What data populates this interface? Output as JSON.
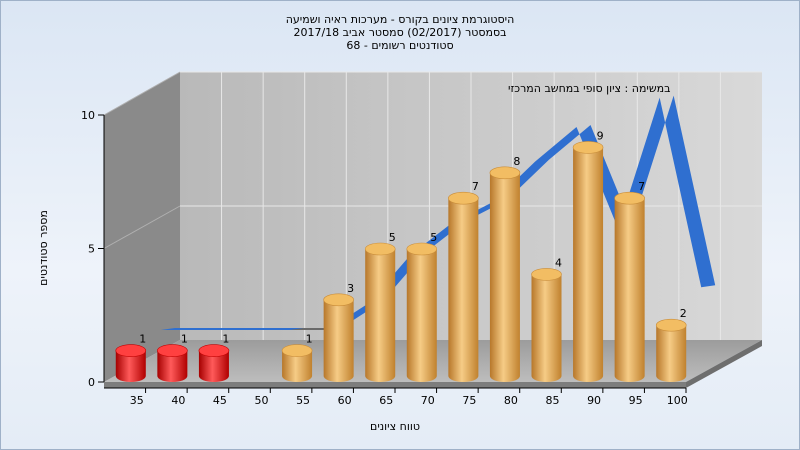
{
  "chart_data": {
    "type": "bar",
    "title_lines": [
      "היסטוגרמת ציונים בקורס - מערכות ראיה ושמיעה",
      "בסמסטר  (02/2017)  סמסטר אביב 2017/18",
      "סטודנטים רשומים - 68"
    ],
    "annotation": "במשימה : ציון סופי במחשב המרכזי",
    "xlabel": "טווח ציונים",
    "ylabel": "מספר סטודנטים",
    "y_ticks": [
      "0",
      "5",
      "10"
    ],
    "ylim": [
      0,
      10
    ],
    "grid": true,
    "categories": [
      "35",
      "40",
      "45",
      "50",
      "55",
      "60",
      "65",
      "70",
      "75",
      "80",
      "85",
      "90",
      "95",
      "100"
    ],
    "values": [
      1,
      1,
      1,
      0,
      1,
      3,
      5,
      5,
      7,
      8,
      4,
      9,
      7,
      2
    ],
    "value_labels": [
      "1",
      "1",
      "1",
      "",
      "1",
      "3",
      "5",
      "5",
      "7",
      "8",
      "4",
      "9",
      "7",
      "2"
    ],
    "failing_categories": [
      "35",
      "40",
      "45"
    ],
    "trend_ribbon": [
      1.2,
      1.2,
      1.2,
      1.2,
      1.2,
      2.2,
      4.0,
      5.2,
      6.0,
      7.5,
      8.8,
      5.0,
      9.9,
      2.8
    ],
    "colors": {
      "fail_bar": "#e01010",
      "pass_bar": "#e6a94e",
      "ribbon": "#2f6fd0",
      "ribbon_shadow": "#6a6a6a",
      "back_wall": "#c8c8c8",
      "side_wall": "#8a8a8a",
      "floor": "#a8a8a8"
    }
  }
}
